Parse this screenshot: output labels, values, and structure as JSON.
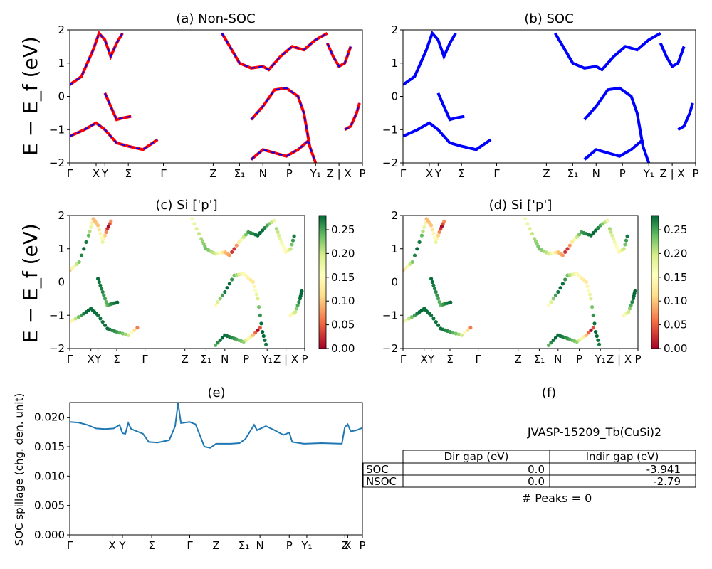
{
  "colors": {
    "non_soc_solid": "#ff0000",
    "non_soc_dash": "#0000ff",
    "soc": "#0000ff",
    "spillage": "#1f77b4"
  },
  "chart_data": [
    {
      "id": "a",
      "type": "line",
      "title": "(a) Non-SOC",
      "ylabel": "E − E_f (eV)",
      "ylim": [
        -2,
        2
      ],
      "yticks": [
        "2",
        "1",
        "0",
        "−1",
        "−2"
      ],
      "xticks": [
        "Γ",
        "X",
        "Y",
        "Σ",
        "Γ",
        "Z",
        "Σ1",
        "N",
        "P",
        "Y1",
        "Z | X",
        "P"
      ],
      "series": [
        {
          "style": "solid+dash",
          "values": [
            [
              0,
              0.35
            ],
            [
              4,
              0.6
            ],
            [
              8,
              1.4
            ],
            [
              10,
              1.9
            ],
            [
              12,
              1.7
            ],
            [
              14,
              1.2
            ],
            [
              16,
              1.6
            ],
            [
              18,
              1.9
            ]
          ]
        },
        {
          "style": "solid+dash",
          "values": [
            [
              0,
              -1.2
            ],
            [
              5,
              -1.0
            ],
            [
              9,
              -0.8
            ],
            [
              12,
              -1.0
            ],
            [
              16,
              -1.4
            ],
            [
              20,
              -1.5
            ],
            [
              25,
              -1.6
            ],
            [
              30,
              -1.3
            ]
          ]
        },
        {
          "style": "solid+dash",
          "values": [
            [
              12,
              0.1
            ],
            [
              14,
              -0.3
            ],
            [
              16,
              -0.7
            ],
            [
              18,
              -0.65
            ],
            [
              21,
              -0.6
            ]
          ]
        },
        {
          "style": "solid+dash",
          "values": [
            [
              62,
              -0.7
            ],
            [
              66,
              -0.3
            ],
            [
              70,
              0.2
            ],
            [
              74,
              0.25
            ],
            [
              78,
              0.0
            ],
            [
              80,
              -0.5
            ],
            [
              82,
              -1.5
            ],
            [
              84,
              -2.0
            ]
          ]
        },
        {
          "style": "solid+dash",
          "values": [
            [
              62,
              -1.9
            ],
            [
              66,
              -1.6
            ],
            [
              70,
              -1.7
            ],
            [
              74,
              -1.8
            ],
            [
              78,
              -1.6
            ],
            [
              82,
              -1.3
            ]
          ]
        },
        {
          "style": "solid+dash",
          "values": [
            [
              52,
              1.9
            ],
            [
              56,
              1.3
            ],
            [
              58,
              1.0
            ],
            [
              62,
              0.85
            ],
            [
              66,
              0.9
            ],
            [
              68,
              0.8
            ],
            [
              72,
              1.2
            ],
            [
              76,
              1.5
            ],
            [
              80,
              1.4
            ],
            [
              84,
              1.7
            ],
            [
              88,
              1.9
            ]
          ]
        },
        {
          "style": "solid+dash",
          "values": [
            [
              88,
              1.6
            ],
            [
              90,
              1.2
            ],
            [
              92,
              0.9
            ],
            [
              94,
              1.0
            ],
            [
              96,
              1.5
            ]
          ]
        },
        {
          "style": "solid+dash",
          "values": [
            [
              94,
              -1.0
            ],
            [
              96,
              -0.9
            ],
            [
              98,
              -0.5
            ],
            [
              99,
              -0.2
            ]
          ]
        }
      ]
    },
    {
      "id": "b",
      "type": "line",
      "title": "(b) SOC",
      "ylim": [
        -2,
        2
      ],
      "yticks": [
        "2",
        "1",
        "0",
        "−1",
        "−2"
      ],
      "xticks": [
        "Γ",
        "X",
        "Y",
        "Σ",
        "Γ",
        "Z",
        "Σ1",
        "N",
        "P",
        "Y1",
        "Z | X",
        "P"
      ],
      "series": [
        {
          "values": [
            [
              0,
              0.35
            ],
            [
              4,
              0.6
            ],
            [
              8,
              1.4
            ],
            [
              10,
              1.9
            ],
            [
              12,
              1.7
            ],
            [
              14,
              1.2
            ],
            [
              16,
              1.6
            ],
            [
              18,
              1.9
            ]
          ]
        },
        {
          "values": [
            [
              0,
              -1.2
            ],
            [
              5,
              -1.0
            ],
            [
              9,
              -0.8
            ],
            [
              12,
              -1.0
            ],
            [
              16,
              -1.4
            ],
            [
              20,
              -1.5
            ],
            [
              25,
              -1.6
            ],
            [
              30,
              -1.3
            ]
          ]
        },
        {
          "values": [
            [
              12,
              0.1
            ],
            [
              14,
              -0.3
            ],
            [
              16,
              -0.7
            ],
            [
              18,
              -0.65
            ],
            [
              21,
              -0.6
            ]
          ]
        },
        {
          "values": [
            [
              62,
              -0.7
            ],
            [
              66,
              -0.3
            ],
            [
              70,
              0.2
            ],
            [
              74,
              0.25
            ],
            [
              78,
              0.0
            ],
            [
              80,
              -0.5
            ],
            [
              82,
              -1.5
            ],
            [
              84,
              -2.0
            ]
          ]
        },
        {
          "values": [
            [
              62,
              -1.9
            ],
            [
              66,
              -1.6
            ],
            [
              70,
              -1.7
            ],
            [
              74,
              -1.8
            ],
            [
              78,
              -1.6
            ],
            [
              82,
              -1.3
            ]
          ]
        },
        {
          "values": [
            [
              52,
              1.9
            ],
            [
              56,
              1.3
            ],
            [
              58,
              1.0
            ],
            [
              62,
              0.85
            ],
            [
              66,
              0.9
            ],
            [
              68,
              0.8
            ],
            [
              72,
              1.2
            ],
            [
              76,
              1.5
            ],
            [
              80,
              1.4
            ],
            [
              84,
              1.7
            ],
            [
              88,
              1.9
            ]
          ]
        },
        {
          "values": [
            [
              88,
              1.6
            ],
            [
              90,
              1.2
            ],
            [
              92,
              0.9
            ],
            [
              94,
              1.0
            ],
            [
              96,
              1.5
            ]
          ]
        },
        {
          "values": [
            [
              94,
              -1.0
            ],
            [
              96,
              -0.9
            ],
            [
              98,
              -0.5
            ],
            [
              99,
              -0.2
            ]
          ]
        }
      ]
    },
    {
      "id": "c",
      "type": "scatter",
      "title": "(c)  Si ['p']",
      "ylabel": "E − E_f (eV)",
      "ylim": [
        -2,
        2
      ],
      "yticks": [
        "2",
        "1",
        "0",
        "−1",
        "−2"
      ],
      "xticks": [
        "Γ",
        "X",
        "Y",
        "Σ",
        "Γ",
        "Z",
        "Σ1",
        "N",
        "P",
        "Y1",
        "Z | X",
        "P"
      ],
      "colorbar": {
        "min": 0.0,
        "max": 0.28,
        "ticks": [
          "0.25",
          "0.20",
          "0.15",
          "0.10",
          "0.05",
          "0.00"
        ]
      }
    },
    {
      "id": "d",
      "type": "scatter",
      "title": "(d) Si ['p']",
      "ylim": [
        -2,
        2
      ],
      "yticks": [
        "2",
        "1",
        "0",
        "−1",
        "−2"
      ],
      "xticks": [
        "Γ",
        "X",
        "Y",
        "Σ",
        "Γ",
        "Z",
        "Σ1",
        "N",
        "P",
        "Y1",
        "Z | X",
        "P"
      ],
      "colorbar": {
        "min": 0.0,
        "max": 0.28,
        "ticks": [
          "0.25",
          "0.20",
          "0.15",
          "0.10",
          "0.05",
          "0.00"
        ]
      }
    },
    {
      "id": "e",
      "type": "line",
      "title": "(e)",
      "ylabel": "SOC spillage (chg. den. unit)",
      "ylim": [
        0,
        0.0225
      ],
      "yticks": [
        "0.020",
        "0.015",
        "0.010",
        "0.005",
        "0.000"
      ],
      "xticks": [
        "Γ",
        "X",
        "Y",
        "Σ",
        "Γ",
        "Z",
        "Σ1",
        "N",
        "P",
        "Y1",
        "Z",
        "X",
        "P"
      ],
      "values": [
        [
          0,
          0.0192
        ],
        [
          3,
          0.0191
        ],
        [
          6,
          0.0187
        ],
        [
          9,
          0.0181
        ],
        [
          12,
          0.018
        ],
        [
          15,
          0.0181
        ],
        [
          17,
          0.0187
        ],
        [
          18,
          0.0173
        ],
        [
          19,
          0.0172
        ],
        [
          20,
          0.019
        ],
        [
          21,
          0.018
        ],
        [
          23,
          0.0176
        ],
        [
          25,
          0.0172
        ],
        [
          27,
          0.0158
        ],
        [
          30,
          0.0157
        ],
        [
          34,
          0.0161
        ],
        [
          36,
          0.0185
        ],
        [
          37,
          0.0224
        ],
        [
          38,
          0.019
        ],
        [
          41,
          0.0192
        ],
        [
          43,
          0.0188
        ],
        [
          46,
          0.015
        ],
        [
          48,
          0.0148
        ],
        [
          50,
          0.0155
        ],
        [
          55,
          0.0155
        ],
        [
          58,
          0.0156
        ],
        [
          60,
          0.0163
        ],
        [
          63,
          0.0187
        ],
        [
          64,
          0.0178
        ],
        [
          67,
          0.0185
        ],
        [
          70,
          0.0178
        ],
        [
          73,
          0.017
        ],
        [
          75,
          0.0174
        ],
        [
          76,
          0.0158
        ],
        [
          80,
          0.0155
        ],
        [
          86,
          0.0156
        ],
        [
          93,
          0.0155
        ],
        [
          94,
          0.0183
        ],
        [
          95,
          0.0188
        ],
        [
          96,
          0.0176
        ],
        [
          98,
          0.0178
        ],
        [
          99,
          0.018
        ],
        [
          100,
          0.0182
        ]
      ]
    }
  ],
  "panel_f": {
    "title": "(f)",
    "material": "JVASP-15209_Tb(CuSi)2",
    "table": {
      "headers": [
        "Dir gap (eV)",
        "Indir gap (eV)"
      ],
      "rows": [
        {
          "label": "SOC",
          "dir": "0.0",
          "indir": "-3.941"
        },
        {
          "label": "NSOC",
          "dir": "0.0",
          "indir": "-2.79"
        }
      ]
    },
    "peaks": "# Peaks = 0"
  }
}
